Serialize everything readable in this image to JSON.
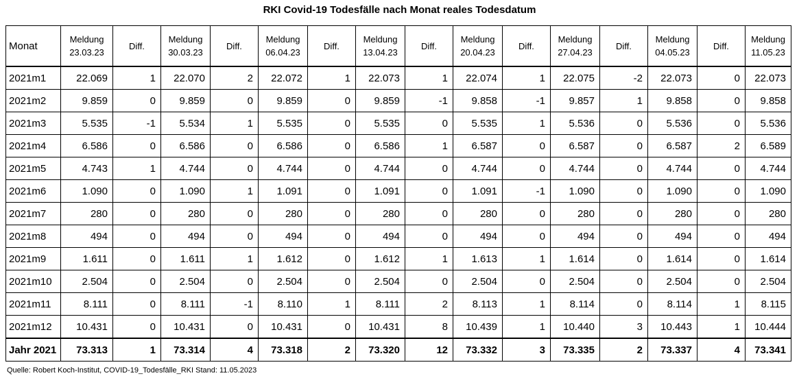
{
  "title": "RKI Covid-19 Todesfälle nach Monat reales Todesdatum",
  "source": "Quelle: Robert Koch-Institut, COVID-19_Todesfälle_RKI Stand: 11.05.2023",
  "header": {
    "month": "Monat",
    "meldung_label": "Meldung",
    "diff_label": "Diff.",
    "dates": [
      "23.03.23",
      "30.03.23",
      "06.04.23",
      "13.04.23",
      "20.04.23",
      "27.04.23",
      "04.05.23",
      "11.05.23"
    ]
  },
  "chart_data": {
    "type": "table",
    "title": "RKI Covid-19 Todesfälle nach Monat reales Todesdatum",
    "columns": [
      "Monat",
      "Meldung 23.03.23",
      "Diff.",
      "Meldung 30.03.23",
      "Diff.",
      "Meldung 06.04.23",
      "Diff.",
      "Meldung 13.04.23",
      "Diff.",
      "Meldung 20.04.23",
      "Diff.",
      "Meldung 27.04.23",
      "Diff.",
      "Meldung 04.05.23",
      "Diff.",
      "Meldung 11.05.23"
    ],
    "rows": [
      [
        "2021m1",
        "22.069",
        "1",
        "22.070",
        "2",
        "22.072",
        "1",
        "22.073",
        "1",
        "22.074",
        "1",
        "22.075",
        "-2",
        "22.073",
        "0",
        "22.073"
      ],
      [
        "2021m2",
        "9.859",
        "0",
        "9.859",
        "0",
        "9.859",
        "0",
        "9.859",
        "-1",
        "9.858",
        "-1",
        "9.857",
        "1",
        "9.858",
        "0",
        "9.858"
      ],
      [
        "2021m3",
        "5.535",
        "-1",
        "5.534",
        "1",
        "5.535",
        "0",
        "5.535",
        "0",
        "5.535",
        "1",
        "5.536",
        "0",
        "5.536",
        "0",
        "5.536"
      ],
      [
        "2021m4",
        "6.586",
        "0",
        "6.586",
        "0",
        "6.586",
        "0",
        "6.586",
        "1",
        "6.587",
        "0",
        "6.587",
        "0",
        "6.587",
        "2",
        "6.589"
      ],
      [
        "2021m5",
        "4.743",
        "1",
        "4.744",
        "0",
        "4.744",
        "0",
        "4.744",
        "0",
        "4.744",
        "0",
        "4.744",
        "0",
        "4.744",
        "0",
        "4.744"
      ],
      [
        "2021m6",
        "1.090",
        "0",
        "1.090",
        "1",
        "1.091",
        "0",
        "1.091",
        "0",
        "1.091",
        "-1",
        "1.090",
        "0",
        "1.090",
        "0",
        "1.090"
      ],
      [
        "2021m7",
        "280",
        "0",
        "280",
        "0",
        "280",
        "0",
        "280",
        "0",
        "280",
        "0",
        "280",
        "0",
        "280",
        "0",
        "280"
      ],
      [
        "2021m8",
        "494",
        "0",
        "494",
        "0",
        "494",
        "0",
        "494",
        "0",
        "494",
        "0",
        "494",
        "0",
        "494",
        "0",
        "494"
      ],
      [
        "2021m9",
        "1.611",
        "0",
        "1.611",
        "1",
        "1.612",
        "0",
        "1.612",
        "1",
        "1.613",
        "1",
        "1.614",
        "0",
        "1.614",
        "0",
        "1.614"
      ],
      [
        "2021m10",
        "2.504",
        "0",
        "2.504",
        "0",
        "2.504",
        "0",
        "2.504",
        "0",
        "2.504",
        "0",
        "2.504",
        "0",
        "2.504",
        "0",
        "2.504"
      ],
      [
        "2021m11",
        "8.111",
        "0",
        "8.111",
        "-1",
        "8.110",
        "1",
        "8.111",
        "2",
        "8.113",
        "1",
        "8.114",
        "0",
        "8.114",
        "1",
        "8.115"
      ],
      [
        "2021m12",
        "10.431",
        "0",
        "10.431",
        "0",
        "10.431",
        "0",
        "10.431",
        "8",
        "10.439",
        "1",
        "10.440",
        "3",
        "10.443",
        "1",
        "10.444"
      ]
    ],
    "total_row": [
      "Jahr 2021",
      "73.313",
      "1",
      "73.314",
      "4",
      "73.318",
      "2",
      "73.320",
      "12",
      "73.332",
      "3",
      "73.335",
      "2",
      "73.337",
      "4",
      "73.341"
    ]
  }
}
